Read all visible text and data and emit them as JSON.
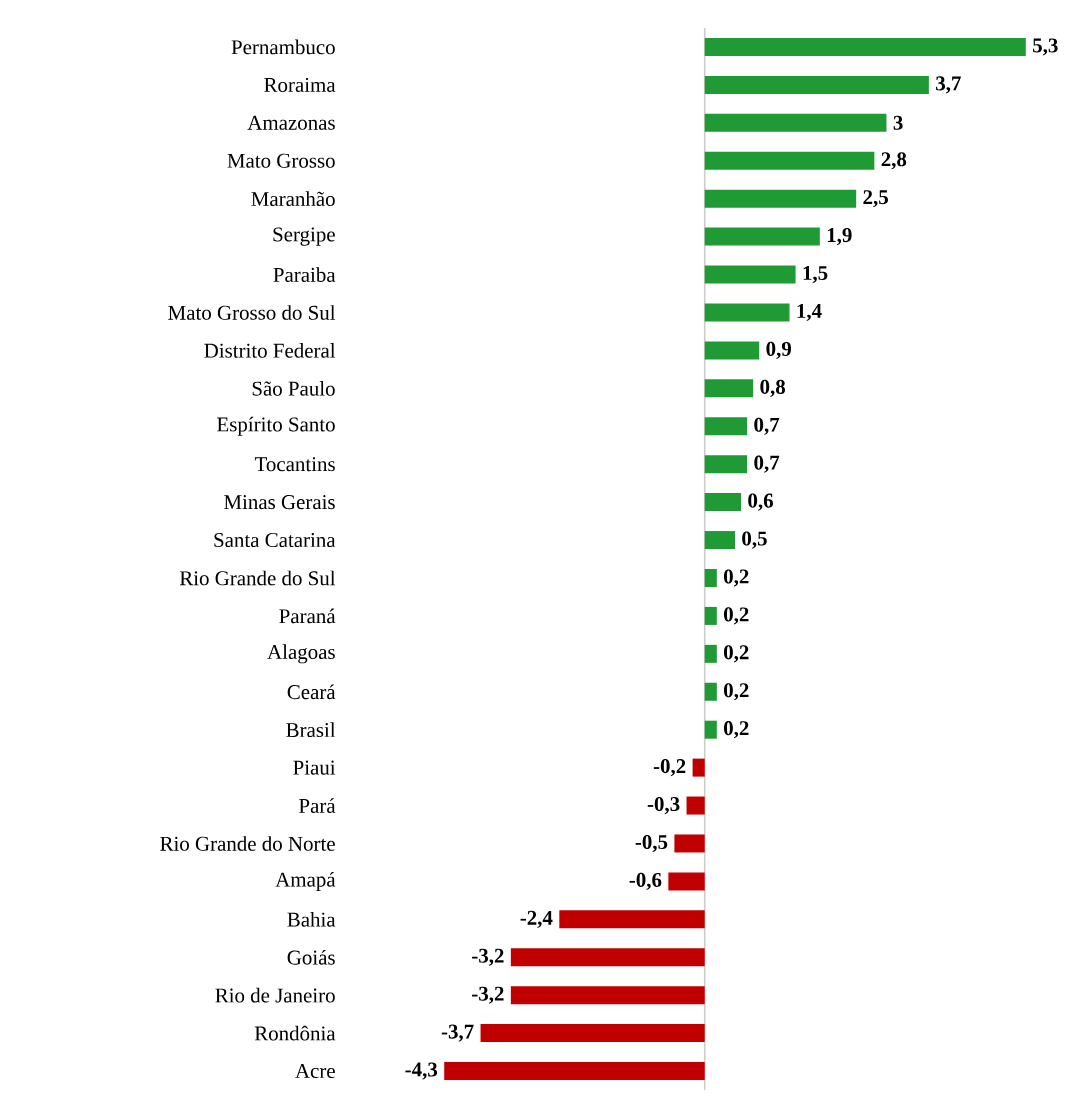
{
  "chart_data": {
    "type": "bar",
    "orientation": "horizontal",
    "tick_labels": "y",
    "categories": [
      "Pernambuco",
      "Roraima",
      "Amazonas",
      "Mato Grosso",
      "Maranhão",
      "Sergipe",
      "Paraiba",
      "Mato Grosso do Sul",
      "Distrito Federal",
      "São Paulo",
      "Espírito Santo",
      "Tocantins",
      "Minas Gerais",
      "Santa Catarina",
      "Rio Grande do Sul",
      "Paraná",
      "Alagoas",
      "Ceará",
      "Brasil",
      "Piaui",
      "Pará",
      "Rio Grande do Norte",
      "Amapá",
      "Bahia",
      "Goiás",
      "Rio de Janeiro",
      "Rondônia",
      "Acre"
    ],
    "values": [
      5.3,
      3.7,
      3,
      2.8,
      2.5,
      1.9,
      1.5,
      1.4,
      0.9,
      0.8,
      0.7,
      0.7,
      0.6,
      0.5,
      0.2,
      0.2,
      0.2,
      0.2,
      0.2,
      -0.2,
      -0.3,
      -0.5,
      -0.6,
      -2.4,
      -3.2,
      -3.2,
      -3.7,
      -4.3
    ],
    "value_labels": [
      "5,3",
      "3,7",
      "3",
      "2,8",
      "2,5",
      "1,9",
      "1,5",
      "1,4",
      "0,9",
      "0,8",
      "0,7",
      "0,7",
      "0,6",
      "0,5",
      "0,2",
      "0,2",
      "0,2",
      "0,2",
      "0,2",
      "-0,2",
      "-0,3",
      "-0,5",
      "-0,6",
      "-2,4",
      "-3,2",
      "-3,2",
      "-3,7",
      "-4,3"
    ],
    "colors": [
      "#1f9a35",
      "#1f9a35",
      "#1f9a35",
      "#1f9a35",
      "#1f9a35",
      "#1f9a35",
      "#1f9a35",
      "#1f9a35",
      "#1f9a35",
      "#1f9a35",
      "#1f9a35",
      "#1f9a35",
      "#1f9a35",
      "#1f9a35",
      "#1f9a35",
      "#1f9a35",
      "#1f9a35",
      "#1f9a35",
      "#1f9a35",
      "#c00000",
      "#c00000",
      "#c00000",
      "#c00000",
      "#c00000",
      "#c00000",
      "#c00000",
      "#c00000",
      "#c00000"
    ]
  }
}
